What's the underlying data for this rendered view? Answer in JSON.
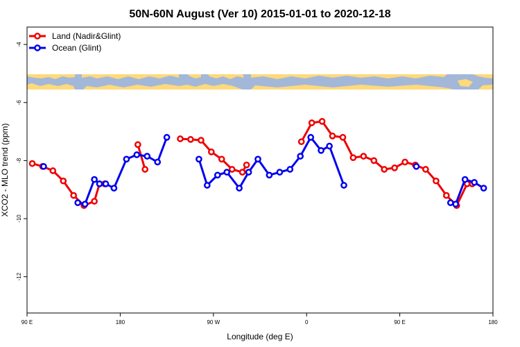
{
  "chart_data": {
    "type": "line",
    "title": "50N-60N August (Ver 10)   2015-01-01 to 2020-12-18",
    "xlabel": "Longitude (deg E)",
    "ylabel": "XCO2 - MLO trend (ppm)",
    "x_axis_start_deg_e": 90,
    "xlim": [
      0,
      450
    ],
    "ylim": [
      -13.25,
      -3.4
    ],
    "x_ticks": [
      {
        "pos": 0,
        "label": "90 E"
      },
      {
        "pos": 90,
        "label": "180"
      },
      {
        "pos": 180,
        "label": "90 W"
      },
      {
        "pos": 270,
        "label": "0"
      },
      {
        "pos": 360,
        "label": "90 E"
      },
      {
        "pos": 450,
        "label": "180"
      }
    ],
    "y_ticks": [
      {
        "value": -4,
        "label": "-4"
      },
      {
        "value": -6,
        "label": "-6"
      },
      {
        "value": -8,
        "label": "-8"
      },
      {
        "value": -10,
        "label": "-10"
      },
      {
        "value": -12,
        "label": "-12"
      }
    ],
    "map_strip": {
      "y_top": -5.45,
      "y_bottom": -5.98,
      "land_color": "#ffd97a",
      "ocean_color": "#a3b8d8"
    },
    "legend_position": "top-left",
    "series": [
      {
        "name": "Land (Nadir&Glint)",
        "color": "#ee0000",
        "segments": [
          [
            [
              5,
              -8.1
            ],
            [
              15,
              -8.2
            ],
            [
              25,
              -8.35
            ],
            [
              35,
              -8.7
            ],
            [
              45,
              -9.2
            ],
            [
              55,
              -9.55
            ],
            [
              65,
              -9.4
            ],
            [
              70,
              -8.8
            ],
            [
              75,
              -8.8
            ]
          ],
          [
            [
              107,
              -7.45
            ],
            [
              114,
              -8.3
            ]
          ],
          [
            [
              148,
              -7.25
            ],
            [
              158,
              -7.27
            ],
            [
              168,
              -7.3
            ],
            [
              178,
              -7.7
            ],
            [
              188,
              -7.95
            ],
            [
              198,
              -8.3
            ],
            [
              208,
              -8.4
            ],
            [
              212,
              -8.15
            ]
          ],
          [
            [
              265,
              -7.35
            ],
            [
              275,
              -6.7
            ],
            [
              285,
              -6.65
            ],
            [
              295,
              -7.15
            ],
            [
              305,
              -7.2
            ],
            [
              315,
              -7.9
            ],
            [
              325,
              -7.85
            ],
            [
              335,
              -8.0
            ],
            [
              345,
              -8.3
            ],
            [
              355,
              -8.25
            ],
            [
              365,
              -8.05
            ],
            [
              375,
              -8.15
            ],
            [
              385,
              -8.3
            ],
            [
              395,
              -8.7
            ],
            [
              405,
              -9.2
            ],
            [
              415,
              -9.55
            ],
            [
              425,
              -8.8
            ],
            [
              430,
              -8.8
            ]
          ]
        ]
      },
      {
        "name": "Ocean (Glint)",
        "color": "#0000ee",
        "segments": [
          [
            [
              16,
              -8.2
            ]
          ],
          [
            [
              49,
              -9.45
            ],
            [
              56,
              -9.5
            ],
            [
              65,
              -8.65
            ],
            [
              70,
              -8.8
            ],
            [
              76,
              -8.8
            ],
            [
              84,
              -8.95
            ],
            [
              96,
              -7.95
            ],
            [
              106,
              -7.8
            ],
            [
              116,
              -7.85
            ],
            [
              126,
              -8.05
            ],
            [
              135,
              -7.2
            ]
          ],
          [
            [
              166,
              -7.95
            ],
            [
              174,
              -8.85
            ],
            [
              184,
              -8.5
            ],
            [
              193,
              -8.4
            ],
            [
              205,
              -8.95
            ],
            [
              214,
              -8.4
            ],
            [
              223,
              -7.95
            ],
            [
              234,
              -8.5
            ],
            [
              244,
              -8.4
            ],
            [
              254,
              -8.3
            ],
            [
              264,
              -7.85
            ],
            [
              274,
              -7.2
            ],
            [
              284,
              -7.65
            ],
            [
              292,
              -7.5
            ],
            [
              306,
              -8.85
            ]
          ],
          [
            [
              376,
              -8.2
            ]
          ],
          [
            [
              409,
              -9.45
            ],
            [
              414,
              -9.5
            ],
            [
              423,
              -8.65
            ],
            [
              432,
              -8.75
            ],
            [
              441,
              -8.95
            ]
          ]
        ]
      }
    ]
  }
}
